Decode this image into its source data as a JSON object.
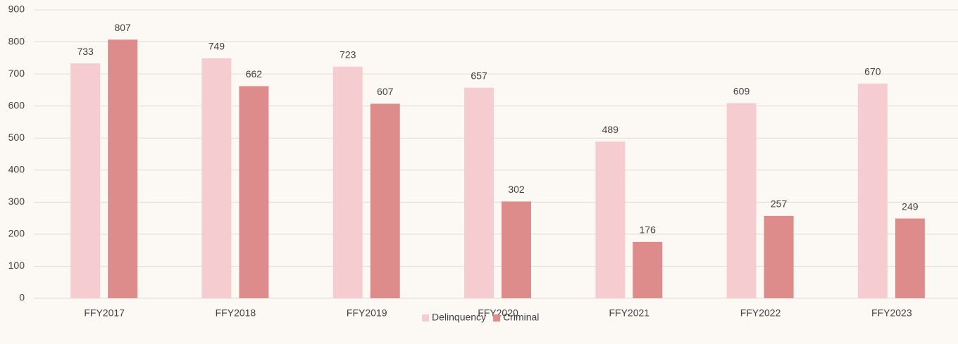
{
  "chart_data": {
    "type": "bar",
    "categories": [
      "FFY2017",
      "FFY2018",
      "FFY2019",
      "FFY2020",
      "FFY2021",
      "FFY2022",
      "FFY2023"
    ],
    "series": [
      {
        "name": "Delinquency",
        "color": "#f5cdd0",
        "values": [
          733,
          749,
          723,
          657,
          489,
          609,
          670
        ]
      },
      {
        "name": "Criminal",
        "color": "#de8b8c",
        "values": [
          807,
          662,
          607,
          302,
          176,
          257,
          249
        ]
      }
    ],
    "ylim": [
      0,
      900
    ],
    "yticks": [
      0,
      100,
      200,
      300,
      400,
      500,
      600,
      700,
      800,
      900
    ],
    "grid": true,
    "legend": "bottom"
  }
}
